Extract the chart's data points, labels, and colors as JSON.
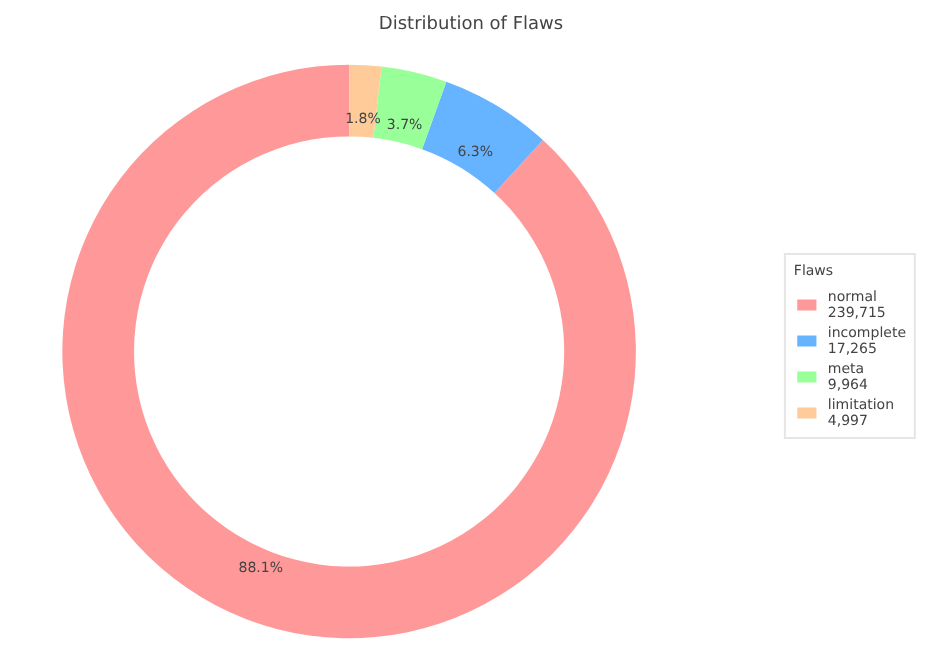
{
  "chart_data": {
    "type": "donut",
    "title": "Distribution of Flaws",
    "legend_title": "Flaws",
    "legend": "right",
    "categories": [
      "normal\n239,715",
      "incomplete\n17,265",
      "meta\n9,964",
      "limitation\n4,997"
    ],
    "values": [
      88.1,
      6.3,
      3.7,
      1.8
    ],
    "colors": [
      "#ff9999",
      "#66b3ff",
      "#99ff99",
      "#ffcc99"
    ],
    "value_labels": [
      "88.1%",
      "6.3%",
      "3.7%",
      "1.8%"
    ]
  }
}
